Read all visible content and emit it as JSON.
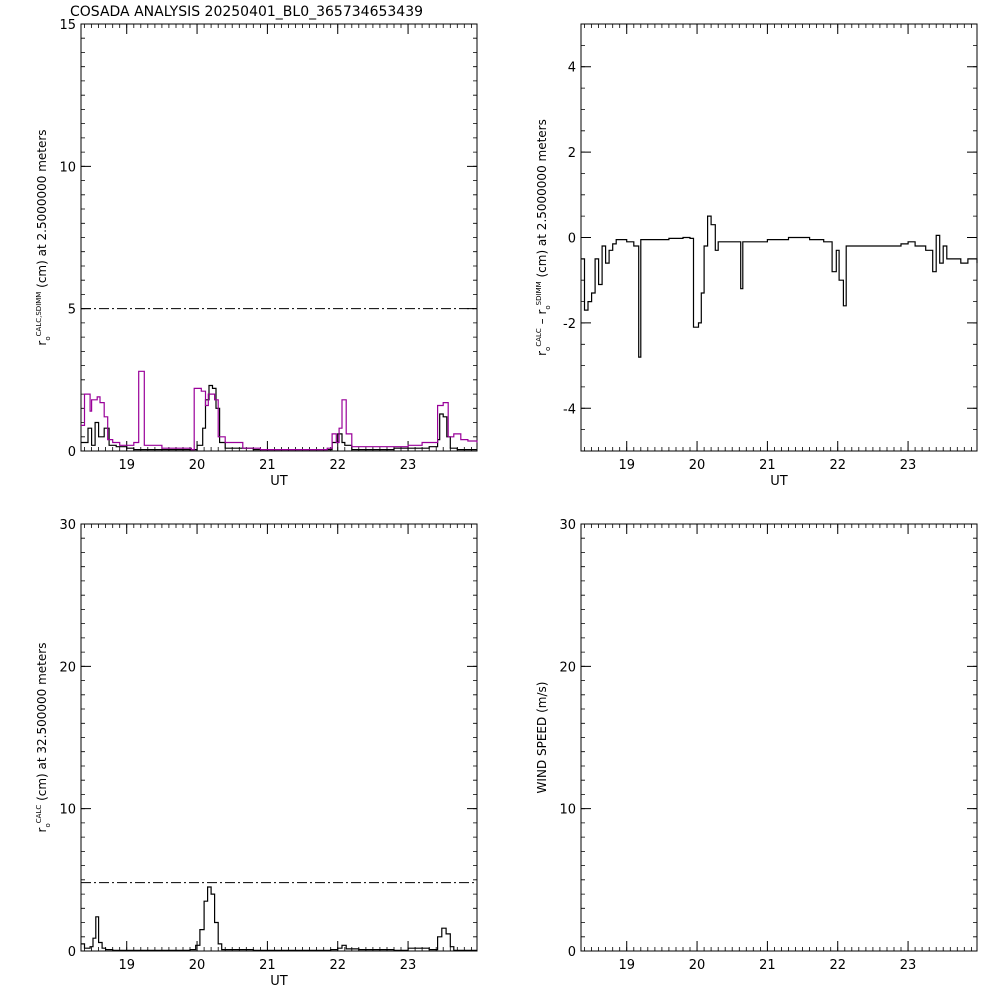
{
  "title": "COSADA ANALYSIS 20250401_BL0_365734653439",
  "colors": {
    "primary": "#000000",
    "secondary": "#990099",
    "reference": "#000000"
  },
  "chart_data": [
    {
      "id": "p1",
      "type": "line",
      "style": "step",
      "ylabel": {
        "main": "r",
        "sub_o": "o",
        "sup": "CALC,SDIMM",
        "rest": " (cm)  at  2.5000000 meters"
      },
      "xlabel": "UT",
      "xlim": [
        18.35,
        23.98
      ],
      "ylim": [
        0,
        15
      ],
      "xticks": [
        "19",
        "20",
        "21",
        "22",
        "23"
      ],
      "yticks": [
        "0",
        "5",
        "10",
        "15"
      ],
      "reference_line": {
        "y": 5,
        "style": "dash-dot"
      },
      "series": [
        {
          "color_key": "primary",
          "points": [
            [
              18.35,
              0.3
            ],
            [
              18.45,
              0.8
            ],
            [
              18.5,
              0.2
            ],
            [
              18.55,
              1.0
            ],
            [
              18.6,
              0.5
            ],
            [
              18.68,
              0.8
            ],
            [
              18.75,
              0.2
            ],
            [
              18.85,
              0.15
            ],
            [
              19.0,
              0.1
            ],
            [
              19.1,
              0.05
            ],
            [
              19.3,
              0.05
            ],
            [
              19.6,
              0.05
            ],
            [
              19.9,
              0.05
            ],
            [
              20.0,
              0.2
            ],
            [
              20.08,
              0.8
            ],
            [
              20.12,
              1.8
            ],
            [
              20.17,
              2.3
            ],
            [
              20.22,
              2.2
            ],
            [
              20.27,
              1.5
            ],
            [
              20.32,
              0.3
            ],
            [
              20.4,
              0.1
            ],
            [
              20.6,
              0.1
            ],
            [
              20.8,
              0.05
            ],
            [
              21.0,
              0.05
            ],
            [
              21.4,
              0.05
            ],
            [
              21.8,
              0.05
            ],
            [
              21.92,
              0.3
            ],
            [
              22.0,
              0.6
            ],
            [
              22.06,
              0.3
            ],
            [
              22.1,
              0.2
            ],
            [
              22.2,
              0.05
            ],
            [
              22.5,
              0.05
            ],
            [
              22.8,
              0.1
            ],
            [
              23.1,
              0.1
            ],
            [
              23.3,
              0.15
            ],
            [
              23.42,
              0.4
            ],
            [
              23.45,
              1.3
            ],
            [
              23.5,
              1.2
            ],
            [
              23.55,
              0.5
            ],
            [
              23.6,
              0.1
            ],
            [
              23.7,
              0.05
            ],
            [
              23.98,
              0.05
            ]
          ]
        },
        {
          "color_key": "secondary",
          "points": [
            [
              18.35,
              0.9
            ],
            [
              18.4,
              2.0
            ],
            [
              18.48,
              1.4
            ],
            [
              18.5,
              1.8
            ],
            [
              18.58,
              1.9
            ],
            [
              18.62,
              1.7
            ],
            [
              18.68,
              1.2
            ],
            [
              18.73,
              0.4
            ],
            [
              18.8,
              0.3
            ],
            [
              18.9,
              0.2
            ],
            [
              19.0,
              0.2
            ],
            [
              19.1,
              0.3
            ],
            [
              19.17,
              2.8
            ],
            [
              19.25,
              0.2
            ],
            [
              19.5,
              0.1
            ],
            [
              19.7,
              0.1
            ],
            [
              19.92,
              0.05
            ],
            [
              19.96,
              2.2
            ],
            [
              20.06,
              2.1
            ],
            [
              20.12,
              1.6
            ],
            [
              20.16,
              2.0
            ],
            [
              20.25,
              1.8
            ],
            [
              20.3,
              0.5
            ],
            [
              20.4,
              0.3
            ],
            [
              20.55,
              0.3
            ],
            [
              20.65,
              0.1
            ],
            [
              20.9,
              0.05
            ],
            [
              21.5,
              0.05
            ],
            [
              21.85,
              0.1
            ],
            [
              21.92,
              0.6
            ],
            [
              21.98,
              0.3
            ],
            [
              22.02,
              0.8
            ],
            [
              22.06,
              1.8
            ],
            [
              22.12,
              0.6
            ],
            [
              22.2,
              0.15
            ],
            [
              22.5,
              0.15
            ],
            [
              22.8,
              0.15
            ],
            [
              23.0,
              0.2
            ],
            [
              23.2,
              0.3
            ],
            [
              23.4,
              0.3
            ],
            [
              23.42,
              1.6
            ],
            [
              23.5,
              1.7
            ],
            [
              23.57,
              0.5
            ],
            [
              23.65,
              0.6
            ],
            [
              23.75,
              0.4
            ],
            [
              23.85,
              0.35
            ],
            [
              23.98,
              0.3
            ]
          ]
        }
      ]
    },
    {
      "id": "p2",
      "type": "line",
      "style": "step",
      "ylabel": {
        "main": "r",
        "sub_o": "o",
        "sup": "CALC",
        "mid": " – r",
        "sub_o2": "o",
        "sup2": "SDIMM",
        "rest": " (cm)  at  2.5000000 meters"
      },
      "xlabel": "UT",
      "xlim": [
        18.35,
        23.98
      ],
      "ylim": [
        -5,
        5
      ],
      "xticks": [
        "19",
        "20",
        "21",
        "22",
        "23"
      ],
      "yticks": [
        "-4",
        "-2",
        "0",
        "2",
        "4"
      ],
      "series": [
        {
          "color_key": "primary",
          "points": [
            [
              18.35,
              -0.5
            ],
            [
              18.4,
              -1.7
            ],
            [
              18.45,
              -1.5
            ],
            [
              18.5,
              -1.3
            ],
            [
              18.55,
              -0.5
            ],
            [
              18.6,
              -1.1
            ],
            [
              18.65,
              -0.2
            ],
            [
              18.7,
              -0.6
            ],
            [
              18.75,
              -0.3
            ],
            [
              18.8,
              -0.15
            ],
            [
              18.85,
              -0.05
            ],
            [
              19.0,
              -0.1
            ],
            [
              19.1,
              -0.2
            ],
            [
              19.17,
              -2.8
            ],
            [
              19.2,
              -0.05
            ],
            [
              19.4,
              -0.05
            ],
            [
              19.6,
              -0.02
            ],
            [
              19.8,
              0.0
            ],
            [
              19.9,
              -0.02
            ],
            [
              19.95,
              -2.1
            ],
            [
              20.02,
              -2.0
            ],
            [
              20.06,
              -1.3
            ],
            [
              20.1,
              -0.2
            ],
            [
              20.15,
              0.5
            ],
            [
              20.2,
              0.3
            ],
            [
              20.26,
              -0.3
            ],
            [
              20.3,
              -0.1
            ],
            [
              20.5,
              -0.1
            ],
            [
              20.62,
              -1.2
            ],
            [
              20.65,
              -0.1
            ],
            [
              20.8,
              -0.1
            ],
            [
              21.0,
              -0.05
            ],
            [
              21.3,
              0.0
            ],
            [
              21.6,
              -0.05
            ],
            [
              21.8,
              -0.1
            ],
            [
              21.92,
              -0.8
            ],
            [
              21.98,
              -0.3
            ],
            [
              22.02,
              -1.0
            ],
            [
              22.08,
              -1.6
            ],
            [
              22.12,
              -0.2
            ],
            [
              22.5,
              -0.2
            ],
            [
              22.9,
              -0.15
            ],
            [
              23.0,
              -0.1
            ],
            [
              23.1,
              -0.2
            ],
            [
              23.25,
              -0.3
            ],
            [
              23.35,
              -0.8
            ],
            [
              23.4,
              0.05
            ],
            [
              23.45,
              -0.6
            ],
            [
              23.5,
              -0.2
            ],
            [
              23.55,
              -0.5
            ],
            [
              23.65,
              -0.5
            ],
            [
              23.75,
              -0.6
            ],
            [
              23.85,
              -0.5
            ],
            [
              23.98,
              -0.6
            ]
          ]
        }
      ]
    },
    {
      "id": "p3",
      "type": "line",
      "style": "step",
      "ylabel": {
        "main": "r",
        "sub_o": "o",
        "sup": "CALC",
        "rest": " (cm)  at  32.500000 meters"
      },
      "xlabel": "UT",
      "xlim": [
        18.35,
        23.98
      ],
      "ylim": [
        0,
        30
      ],
      "xticks": [
        "19",
        "20",
        "21",
        "22",
        "23"
      ],
      "yticks": [
        "0",
        "10",
        "20",
        "30"
      ],
      "reference_line": {
        "y": 4.8,
        "style": "dash-dot"
      },
      "series": [
        {
          "color_key": "primary",
          "points": [
            [
              18.35,
              0.5
            ],
            [
              18.4,
              0.2
            ],
            [
              18.48,
              0.3
            ],
            [
              18.52,
              0.9
            ],
            [
              18.56,
              2.4
            ],
            [
              18.6,
              0.6
            ],
            [
              18.65,
              0.2
            ],
            [
              18.7,
              0.1
            ],
            [
              18.8,
              0.05
            ],
            [
              19.0,
              0.05
            ],
            [
              19.5,
              0.05
            ],
            [
              19.9,
              0.1
            ],
            [
              19.98,
              0.4
            ],
            [
              20.04,
              1.5
            ],
            [
              20.1,
              3.5
            ],
            [
              20.15,
              4.5
            ],
            [
              20.2,
              4.0
            ],
            [
              20.25,
              2.0
            ],
            [
              20.3,
              0.5
            ],
            [
              20.35,
              0.1
            ],
            [
              20.6,
              0.1
            ],
            [
              20.8,
              0.05
            ],
            [
              21.5,
              0.05
            ],
            [
              21.9,
              0.1
            ],
            [
              22.0,
              0.2
            ],
            [
              22.06,
              0.4
            ],
            [
              22.12,
              0.15
            ],
            [
              22.3,
              0.1
            ],
            [
              22.8,
              0.05
            ],
            [
              23.0,
              0.2
            ],
            [
              23.3,
              0.1
            ],
            [
              23.42,
              1.0
            ],
            [
              23.48,
              1.6
            ],
            [
              23.54,
              1.2
            ],
            [
              23.6,
              0.3
            ],
            [
              23.65,
              0.05
            ],
            [
              23.98,
              0.05
            ]
          ]
        }
      ]
    },
    {
      "id": "p4",
      "type": "line",
      "ylabel": {
        "main": "WIND SPEED (m/s)"
      },
      "xlabel": "",
      "xlim": [
        18.35,
        23.98
      ],
      "ylim": [
        0,
        30
      ],
      "xticks": [
        "19",
        "20",
        "21",
        "22",
        "23"
      ],
      "yticks": [
        "0",
        "10",
        "20",
        "30"
      ],
      "series": []
    }
  ]
}
